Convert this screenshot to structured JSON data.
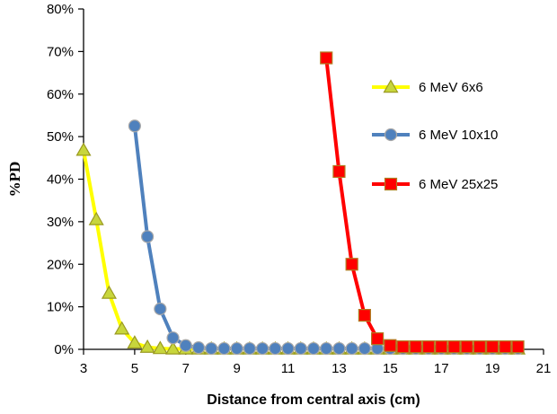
{
  "chart_data": {
    "type": "line",
    "title": "",
    "xlabel": "Distance from central axis (cm)",
    "ylabel": "%PD",
    "xlim": [
      3,
      21
    ],
    "ylim": [
      0,
      80
    ],
    "xticks": [
      3,
      5,
      7,
      9,
      11,
      13,
      15,
      17,
      19,
      21
    ],
    "xtick_labels": [
      "3",
      "5",
      "7",
      "9",
      "11",
      "13",
      "15",
      "17",
      "19",
      "21"
    ],
    "yticks": [
      0,
      10,
      20,
      30,
      40,
      50,
      60,
      70,
      80
    ],
    "ytick_labels": [
      "0%",
      "10%",
      "20%",
      "30%",
      "40%",
      "50%",
      "60%",
      "70%",
      "80%"
    ],
    "grid": false,
    "legend_position": "right",
    "series": [
      {
        "name": "6 MeV 6x6",
        "marker": "triangle",
        "line_color": "#ffff00",
        "marker_fill": "#c8d63c",
        "marker_stroke": "#9a9a20",
        "x": [
          3.0,
          3.5,
          4.0,
          4.5,
          5.0,
          5.5,
          6.0,
          6.5,
          7.0,
          7.5,
          8.0,
          8.5,
          9.0,
          9.5,
          10.0,
          10.5,
          11.0,
          11.5,
          12.0,
          12.5,
          13.0,
          13.5,
          14.0,
          14.5,
          15.0,
          15.5,
          16.0,
          16.5,
          17.0,
          17.5,
          18.0,
          18.5,
          19.0,
          19.5,
          20.0
        ],
        "y": [
          46.8,
          30.5,
          13.2,
          4.8,
          1.5,
          0.5,
          0.2,
          0.1,
          0.1,
          0.1,
          0.1,
          0.1,
          0.1,
          0.1,
          0.1,
          0.1,
          0.1,
          0.1,
          0.1,
          0.1,
          0.1,
          0.1,
          0.1,
          0.1,
          0.1,
          0.1,
          0.1,
          0.1,
          0.1,
          0.1,
          0.1,
          0.1,
          0.1,
          0.1,
          0.1
        ]
      },
      {
        "name": "6 MeV 10x10",
        "marker": "circle",
        "line_color": "#4f81bd",
        "marker_fill": "#4f81bd",
        "marker_stroke": "#a8a8a8",
        "x": [
          5.0,
          5.5,
          6.0,
          6.5,
          7.0,
          7.5,
          8.0,
          8.5,
          9.0,
          9.5,
          10.0,
          10.5,
          11.0,
          11.5,
          12.0,
          12.5,
          13.0,
          13.5,
          14.0,
          14.5,
          15.0,
          15.5,
          16.0,
          16.5,
          17.0,
          17.5,
          18.0,
          18.5,
          19.0,
          19.5,
          20.0
        ],
        "y": [
          52.5,
          26.5,
          9.5,
          2.7,
          0.9,
          0.4,
          0.2,
          0.2,
          0.2,
          0.2,
          0.2,
          0.2,
          0.2,
          0.2,
          0.2,
          0.2,
          0.2,
          0.2,
          0.2,
          0.2,
          0.2,
          0.2,
          0.2,
          0.2,
          0.2,
          0.2,
          0.2,
          0.2,
          0.2,
          0.2,
          0.2
        ]
      },
      {
        "name": "6 MeV 25x25",
        "marker": "square",
        "line_color": "#ff0000",
        "marker_fill": "#ff0000",
        "marker_stroke": "#b07c20",
        "x": [
          12.5,
          13.0,
          13.5,
          14.0,
          14.5,
          15.0,
          15.5,
          16.0,
          16.5,
          17.0,
          17.5,
          18.0,
          18.5,
          19.0,
          19.5,
          20.0
        ],
        "y": [
          68.5,
          41.8,
          20.0,
          8.0,
          2.5,
          0.9,
          0.6,
          0.6,
          0.6,
          0.6,
          0.6,
          0.6,
          0.6,
          0.6,
          0.6,
          0.6
        ]
      }
    ]
  }
}
